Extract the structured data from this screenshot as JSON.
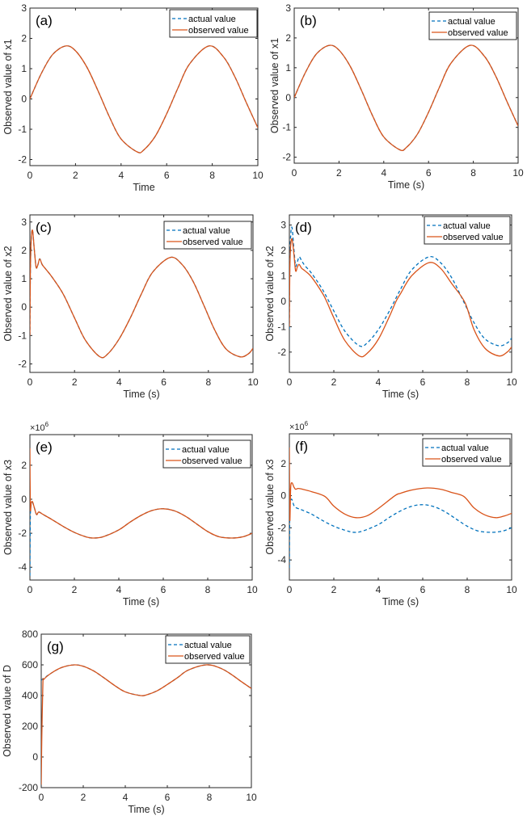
{
  "figure": {
    "legend": {
      "actual_label": "actual value",
      "observed_label": "observed value"
    },
    "colors": {
      "actual": "#0072BD",
      "observed": "#D95319",
      "axes": "#262626"
    }
  },
  "chart_data": [
    {
      "id": "a",
      "type": "line",
      "tag": "(a)",
      "xlabel": "Time",
      "ylabel": "Observed value of x1",
      "xlim": [
        0,
        10
      ],
      "ylim": [
        -2.2,
        3
      ],
      "xticks": [
        0,
        2,
        4,
        6,
        8,
        10
      ],
      "yticks": [
        -2,
        -1,
        0,
        1,
        2,
        3
      ],
      "exponent": "",
      "legend_position": "top-right",
      "series": [
        {
          "name": "actual value",
          "style": "dashed",
          "x": [
            0,
            0.5,
            1,
            1.5708,
            2,
            2.5,
            3,
            3.5,
            4,
            4.7124,
            5,
            5.5,
            6,
            6.5,
            7,
            7.854,
            8.5,
            9,
            9.5,
            10
          ],
          "y": [
            0,
            0.84,
            1.47,
            1.75,
            1.59,
            1.05,
            0.25,
            -0.61,
            -1.32,
            -1.75,
            -1.68,
            -1.23,
            -0.49,
            0.37,
            1.15,
            1.75,
            1.38,
            0.72,
            -0.13,
            -0.95
          ]
        },
        {
          "name": "observed value",
          "style": "solid",
          "x": [
            0,
            0.5,
            1,
            1.5708,
            2,
            2.5,
            3,
            3.5,
            4,
            4.7124,
            5,
            5.5,
            6,
            6.5,
            7,
            7.854,
            8.5,
            9,
            9.5,
            10
          ],
          "y": [
            0,
            0.84,
            1.47,
            1.75,
            1.59,
            1.05,
            0.25,
            -0.61,
            -1.32,
            -1.75,
            -1.68,
            -1.23,
            -0.49,
            0.37,
            1.15,
            1.75,
            1.38,
            0.72,
            -0.13,
            -0.95
          ]
        }
      ]
    },
    {
      "id": "b",
      "type": "line",
      "tag": "(b)",
      "xlabel": "Time (s)",
      "ylabel": "Observed value of x1",
      "xlim": [
        0,
        10
      ],
      "ylim": [
        -2.2,
        3
      ],
      "xticks": [
        0,
        2,
        4,
        6,
        8,
        10
      ],
      "yticks": [
        -2,
        -1,
        0,
        1,
        2,
        3
      ],
      "exponent": "",
      "legend_position": "top-right",
      "series": [
        {
          "name": "actual value",
          "style": "dashed",
          "x": [
            0,
            0.5,
            1,
            1.5708,
            2,
            2.5,
            3,
            3.5,
            4,
            4.7124,
            5,
            5.5,
            6,
            6.5,
            7,
            7.854,
            8.5,
            9,
            9.5,
            10
          ],
          "y": [
            0,
            0.84,
            1.47,
            1.75,
            1.59,
            1.05,
            0.25,
            -0.61,
            -1.32,
            -1.75,
            -1.68,
            -1.23,
            -0.49,
            0.37,
            1.15,
            1.75,
            1.38,
            0.72,
            -0.13,
            -0.95
          ]
        },
        {
          "name": "observed value",
          "style": "solid",
          "x": [
            0,
            0.5,
            1,
            1.5708,
            2,
            2.5,
            3,
            3.5,
            4,
            4.7124,
            5,
            5.5,
            6,
            6.5,
            7,
            7.854,
            8.5,
            9,
            9.5,
            10
          ],
          "y": [
            0,
            0.84,
            1.47,
            1.75,
            1.59,
            1.05,
            0.25,
            -0.61,
            -1.32,
            -1.75,
            -1.68,
            -1.23,
            -0.49,
            0.37,
            1.15,
            1.75,
            1.38,
            0.72,
            -0.13,
            -0.95
          ]
        }
      ]
    },
    {
      "id": "c",
      "type": "line",
      "tag": "(c)",
      "xlabel": "Time (s)",
      "ylabel": "Observed value of x2",
      "xlim": [
        0,
        10
      ],
      "ylim": [
        -2.3,
        3.25
      ],
      "xticks": [
        0,
        2,
        4,
        6,
        8,
        10
      ],
      "yticks": [
        -2,
        -1,
        0,
        1,
        2,
        3
      ],
      "exponent": "",
      "legend_position": "top-right",
      "series": [
        {
          "name": "actual value",
          "style": "dashed",
          "x": [
            0,
            0.02,
            0.06,
            0.12,
            0.2,
            0.28,
            0.36,
            0.44,
            0.55,
            0.7,
            1,
            1.5,
            2,
            2.5,
            3.14,
            3.5,
            4,
            4.5,
            5,
            5.5,
            6.28,
            6.8,
            7.3,
            7.8,
            8.3,
            8.8,
            9.42,
            9.8,
            10
          ],
          "y": [
            -1.0,
            1.2,
            2.4,
            2.7,
            2.0,
            1.4,
            1.5,
            1.7,
            1.5,
            1.35,
            1.05,
            0.45,
            -0.38,
            -1.18,
            -1.75,
            -1.64,
            -1.12,
            -0.38,
            0.47,
            1.23,
            1.75,
            1.52,
            0.93,
            0.06,
            -0.83,
            -1.48,
            -1.75,
            -1.64,
            -1.45
          ]
        },
        {
          "name": "observed value",
          "style": "solid",
          "x": [
            0,
            0.02,
            0.06,
            0.12,
            0.2,
            0.28,
            0.36,
            0.44,
            0.55,
            0.7,
            1,
            1.5,
            2,
            2.5,
            3.14,
            3.5,
            4,
            4.5,
            5,
            5.5,
            6.28,
            6.8,
            7.3,
            7.8,
            8.3,
            8.8,
            9.42,
            9.8,
            10
          ],
          "y": [
            -1.0,
            1.2,
            2.4,
            2.7,
            2.0,
            1.4,
            1.5,
            1.7,
            1.5,
            1.35,
            1.05,
            0.45,
            -0.38,
            -1.18,
            -1.75,
            -1.64,
            -1.12,
            -0.38,
            0.47,
            1.23,
            1.75,
            1.52,
            0.93,
            0.06,
            -0.83,
            -1.48,
            -1.75,
            -1.64,
            -1.45
          ]
        }
      ]
    },
    {
      "id": "d",
      "type": "line",
      "tag": "(d)",
      "xlabel": "Time (s)",
      "ylabel": "Observed value of x2",
      "xlim": [
        0,
        10
      ],
      "ylim": [
        -2.8,
        3.4
      ],
      "xticks": [
        0,
        2,
        4,
        6,
        8,
        10
      ],
      "yticks": [
        -2,
        -1,
        0,
        1,
        2,
        3
      ],
      "exponent": "",
      "legend_position": "top-right",
      "series": [
        {
          "name": "actual value",
          "style": "dashed",
          "x": [
            0,
            0.02,
            0.06,
            0.12,
            0.2,
            0.28,
            0.36,
            0.44,
            0.55,
            0.7,
            1,
            1.5,
            2,
            2.5,
            3.14,
            3.5,
            4,
            4.5,
            5,
            5.5,
            6.28,
            6.8,
            7.3,
            7.8,
            8.3,
            8.8,
            9.42,
            9.8,
            10
          ],
          "y": [
            -1.1,
            1.5,
            2.6,
            2.9,
            2.1,
            1.4,
            1.55,
            1.75,
            1.6,
            1.4,
            1.1,
            0.45,
            -0.38,
            -1.18,
            -1.75,
            -1.64,
            -1.12,
            -0.38,
            0.47,
            1.23,
            1.75,
            1.52,
            0.93,
            0.06,
            -0.83,
            -1.48,
            -1.75,
            -1.64,
            -1.45
          ]
        },
        {
          "name": "observed value",
          "style": "solid",
          "x": [
            0,
            0.02,
            0.06,
            0.12,
            0.2,
            0.28,
            0.36,
            0.44,
            0.55,
            0.7,
            1,
            1.5,
            1.7,
            2,
            2.5,
            3.14,
            3.5,
            4,
            4.5,
            4.8,
            5,
            5.5,
            6.28,
            6.8,
            7.3,
            7.9,
            8.3,
            8.8,
            9.42,
            9.8,
            10
          ],
          "y": [
            -1.0,
            1.2,
            2.2,
            2.45,
            1.9,
            1.2,
            1.35,
            1.45,
            1.3,
            1.2,
            0.95,
            0.3,
            -0.05,
            -0.65,
            -1.55,
            -2.15,
            -2.05,
            -1.5,
            -0.6,
            0.0,
            0.3,
            1.0,
            1.52,
            1.3,
            0.7,
            -0.05,
            -1.1,
            -1.85,
            -2.15,
            -2.0,
            -1.8
          ]
        }
      ]
    },
    {
      "id": "e",
      "type": "line",
      "tag": "(e)",
      "xlabel": "Time (s)",
      "ylabel": "Observed value of x3",
      "xlim": [
        0,
        10
      ],
      "ylim": [
        -4.75,
        3.8
      ],
      "xticks": [
        0,
        2,
        4,
        6,
        8,
        10
      ],
      "yticks": [
        -4,
        -2,
        0,
        2
      ],
      "exponent": "6",
      "legend_position": "top-right",
      "series": [
        {
          "name": "actual value",
          "style": "dashed",
          "x": [
            0,
            0.02,
            0.06,
            0.12,
            0.2,
            0.3,
            0.4,
            0.6,
            1,
            1.5,
            2,
            2.5,
            2.85,
            3.3,
            4,
            4.5,
            5,
            5.5,
            6.0,
            6.5,
            7,
            7.5,
            8,
            8.5,
            9.1,
            9.6,
            10
          ],
          "y": [
            -4.5,
            -1.0,
            -0.3,
            -0.2,
            -0.5,
            -0.9,
            -0.75,
            -0.9,
            -1.2,
            -1.6,
            -1.95,
            -2.2,
            -2.28,
            -2.2,
            -1.8,
            -1.35,
            -0.95,
            -0.66,
            -0.56,
            -0.68,
            -1.0,
            -1.45,
            -1.9,
            -2.2,
            -2.28,
            -2.2,
            -2.0
          ]
        },
        {
          "name": "observed value",
          "style": "solid",
          "x": [
            0,
            0.02,
            0.06,
            0.12,
            0.2,
            0.3,
            0.4,
            0.6,
            1,
            1.5,
            2,
            2.5,
            2.85,
            3.3,
            4,
            4.5,
            5,
            5.5,
            6.0,
            6.5,
            7,
            7.5,
            8,
            8.5,
            9.1,
            9.6,
            10
          ],
          "y": [
            3.0,
            -0.5,
            -0.2,
            -0.15,
            -0.5,
            -0.9,
            -0.75,
            -0.9,
            -1.2,
            -1.6,
            -1.95,
            -2.2,
            -2.28,
            -2.2,
            -1.8,
            -1.35,
            -0.95,
            -0.66,
            -0.56,
            -0.68,
            -1.0,
            -1.45,
            -1.9,
            -2.2,
            -2.28,
            -2.2,
            -2.0
          ]
        }
      ]
    },
    {
      "id": "f",
      "type": "line",
      "tag": "(f)",
      "xlabel": "Time (s)",
      "ylabel": "Observed value of x3",
      "xlim": [
        0,
        10
      ],
      "ylim": [
        -5.25,
        3.85
      ],
      "xticks": [
        0,
        2,
        4,
        6,
        8,
        10
      ],
      "yticks": [
        -4,
        -2,
        0,
        2
      ],
      "exponent": "6",
      "legend_position": "top-right",
      "series": [
        {
          "name": "actual value",
          "style": "dashed",
          "x": [
            0,
            0.02,
            0.06,
            0.12,
            0.2,
            0.3,
            0.5,
            1,
            1.5,
            2,
            2.5,
            2.9,
            3.3,
            4,
            4.5,
            5,
            5.5,
            6.0,
            6.5,
            7,
            7.5,
            8,
            8.5,
            9.1,
            9.6,
            10
          ],
          "y": [
            -4.5,
            -1.0,
            -0.3,
            -0.25,
            -0.6,
            -0.75,
            -0.85,
            -1.15,
            -1.55,
            -1.9,
            -2.15,
            -2.28,
            -2.2,
            -1.8,
            -1.35,
            -0.95,
            -0.66,
            -0.56,
            -0.68,
            -1.0,
            -1.45,
            -1.9,
            -2.2,
            -2.28,
            -2.2,
            -2.0
          ]
        },
        {
          "name": "observed value",
          "style": "solid",
          "x": [
            0,
            0.02,
            0.06,
            0.12,
            0.2,
            0.28,
            0.4,
            0.6,
            1,
            1.6,
            2,
            2.5,
            3.0,
            3.5,
            4,
            4.75,
            5,
            5.5,
            6.2,
            6.8,
            7.3,
            7.85,
            8.3,
            8.8,
            9.3,
            9.7,
            10
          ],
          "y": [
            3.0,
            -1.5,
            0.5,
            0.8,
            0.55,
            0.4,
            0.45,
            0.4,
            0.25,
            -0.05,
            -0.65,
            -1.15,
            -1.37,
            -1.25,
            -0.8,
            0.0,
            0.15,
            0.35,
            0.48,
            0.4,
            0.2,
            -0.05,
            -0.75,
            -1.2,
            -1.37,
            -1.25,
            -1.1
          ]
        }
      ]
    },
    {
      "id": "g",
      "type": "line",
      "tag": "(g)",
      "xlabel": "Time (s)",
      "ylabel": "Observed value of D",
      "xlim": [
        0,
        10
      ],
      "ylim": [
        -200,
        800
      ],
      "xticks": [
        0,
        2,
        4,
        6,
        8,
        10
      ],
      "yticks": [
        -200,
        0,
        200,
        400,
        600,
        800
      ],
      "exponent": "",
      "legend_position": "top-right",
      "series": [
        {
          "name": "actual value",
          "style": "dashed",
          "x": [
            0,
            0.5,
            1,
            1.5708,
            2,
            2.5,
            3,
            3.5,
            4,
            4.7124,
            5,
            5.5,
            6,
            6.5,
            7,
            7.854,
            8.5,
            9,
            9.5,
            10
          ],
          "y": [
            500,
            548,
            584,
            600,
            591,
            560,
            514,
            465,
            424,
            400,
            404,
            430,
            472,
            518,
            566,
            600,
            580,
            542,
            493,
            446
          ]
        },
        {
          "name": "observed value",
          "style": "solid",
          "x": [
            0,
            0.03,
            0.08,
            0.12,
            0.5,
            1,
            1.5708,
            2,
            2.5,
            3,
            3.5,
            4,
            4.7124,
            5,
            5.5,
            6,
            6.5,
            7,
            7.854,
            8.5,
            9,
            9.5,
            10
          ],
          "y": [
            -180,
            150,
            480,
            505,
            548,
            584,
            600,
            591,
            560,
            514,
            465,
            424,
            400,
            404,
            430,
            472,
            518,
            566,
            600,
            580,
            542,
            493,
            446
          ]
        }
      ]
    }
  ]
}
